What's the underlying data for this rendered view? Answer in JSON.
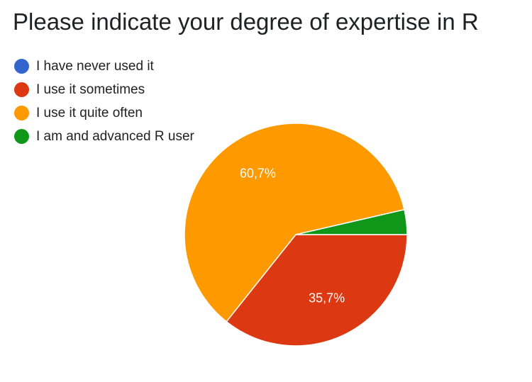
{
  "chart_data": {
    "type": "pie",
    "title": "Please indicate your degree of expertise in R",
    "legend_position": "top-left",
    "slices": [
      {
        "label": "I have never used it",
        "value": 0.0,
        "color": "#3366cc"
      },
      {
        "label": "I use it sometimes",
        "value": 35.7,
        "color": "#dc3912",
        "data_label": "35,7%"
      },
      {
        "label": "I use it quite often",
        "value": 60.7,
        "color": "#ff9900",
        "data_label": "60,7%"
      },
      {
        "label": "I am and advanced R user",
        "value": 3.6,
        "color": "#109618"
      }
    ]
  }
}
